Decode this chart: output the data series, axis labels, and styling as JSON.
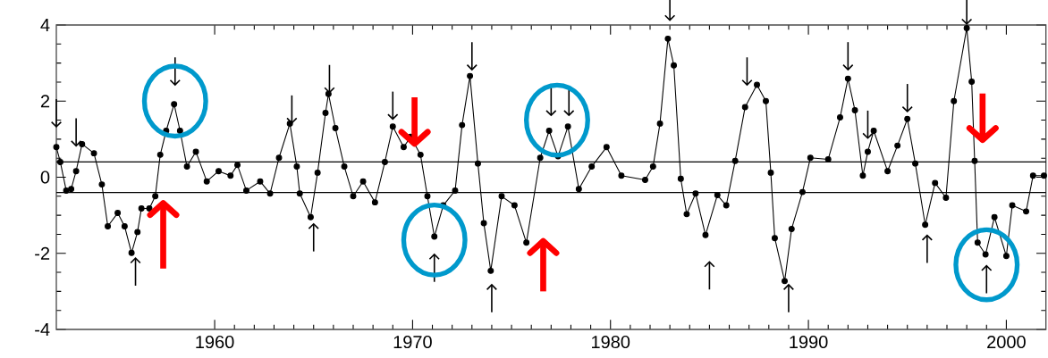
{
  "chart_data": {
    "type": "line",
    "xlim": [
      1952,
      2002
    ],
    "ylim": [
      -4,
      4
    ],
    "xticks": [
      1960,
      1970,
      1980,
      1990,
      2000
    ],
    "yticks": [
      -4,
      -2,
      0,
      2,
      4
    ],
    "grid": false,
    "marker": "circle",
    "line_style": "solid",
    "ref_lines": [
      {
        "axis": "y",
        "value": 0.4,
        "color": "#000000"
      },
      {
        "axis": "y",
        "value": -0.4,
        "color": "#000000"
      }
    ],
    "x": [
      1952.0,
      1952.2,
      1952.5,
      1952.75,
      1953.0,
      1953.3,
      1953.9,
      1954.3,
      1954.6,
      1955.1,
      1955.45,
      1955.8,
      1956.1,
      1956.3,
      1956.7,
      1957.0,
      1957.25,
      1957.55,
      1957.95,
      1958.25,
      1958.6,
      1959.05,
      1959.6,
      1960.2,
      1960.8,
      1961.15,
      1961.6,
      1962.3,
      1962.8,
      1963.25,
      1963.8,
      1964.15,
      1964.3,
      1964.85,
      1965.2,
      1965.6,
      1965.75,
      1966.1,
      1966.55,
      1967.0,
      1967.5,
      1968.1,
      1968.6,
      1969.0,
      1969.55,
      1969.9,
      1970.4,
      1970.75,
      1971.1,
      1971.55,
      1972.15,
      1972.5,
      1972.9,
      1973.3,
      1973.6,
      1973.95,
      1974.5,
      1975.15,
      1975.75,
      1976.45,
      1976.9,
      1977.35,
      1977.85,
      1978.4,
      1979.05,
      1979.8,
      1980.55,
      1981.75,
      1982.15,
      1982.5,
      1982.9,
      1983.2,
      1983.55,
      1983.85,
      1984.3,
      1984.8,
      1985.4,
      1985.85,
      1986.3,
      1986.8,
      1987.4,
      1987.85,
      1988.1,
      1988.3,
      1988.8,
      1989.15,
      1989.7,
      1990.1,
      1991.0,
      1991.6,
      1992.0,
      1992.35,
      1992.75,
      1993.0,
      1993.3,
      1994.0,
      1994.5,
      1995.0,
      1995.4,
      1995.9,
      1996.4,
      1996.95,
      1997.35,
      1998.0,
      1998.25,
      1998.4,
      1998.55,
      1998.95,
      1999.4,
      2000.0,
      2000.3,
      2001.0,
      2001.35,
      2001.9
    ],
    "series": [
      {
        "color": "#000000",
        "values": [
          0.79,
          0.4,
          -0.35,
          -0.31,
          0.16,
          0.87,
          0.63,
          -0.19,
          -1.29,
          -0.94,
          -1.29,
          -1.99,
          -1.44,
          -0.82,
          -0.82,
          -0.5,
          0.59,
          1.22,
          1.92,
          1.22,
          0.28,
          0.67,
          -0.11,
          0.16,
          0.04,
          0.32,
          -0.35,
          -0.11,
          -0.43,
          0.51,
          1.41,
          0.28,
          -0.43,
          -1.05,
          0.12,
          1.69,
          2.19,
          1.29,
          0.28,
          -0.5,
          -0.11,
          -0.66,
          0.4,
          1.33,
          0.79,
          1.06,
          0.59,
          -0.5,
          -1.56,
          -0.74,
          -0.35,
          1.37,
          2.66,
          0.36,
          -1.21,
          -2.46,
          -0.5,
          -0.74,
          -1.72,
          0.51,
          1.22,
          0.55,
          1.33,
          -0.31,
          0.28,
          0.79,
          0.04,
          -0.07,
          0.28,
          1.41,
          3.64,
          2.94,
          -0.04,
          -0.97,
          -0.43,
          -1.52,
          -0.47,
          -0.74,
          0.43,
          1.84,
          2.43,
          2.0,
          0.12,
          -1.6,
          -2.73,
          -1.36,
          -0.39,
          0.51,
          0.47,
          1.57,
          2.59,
          1.76,
          0.04,
          0.67,
          1.22,
          0.16,
          0.83,
          1.53,
          0.36,
          -1.25,
          -0.15,
          -0.54,
          2.0,
          3.92,
          2.51,
          0.43,
          -1.72,
          -2.03,
          -1.05,
          -2.07,
          -0.74,
          -0.9,
          0.04,
          0.04
        ]
      }
    ]
  }
}
